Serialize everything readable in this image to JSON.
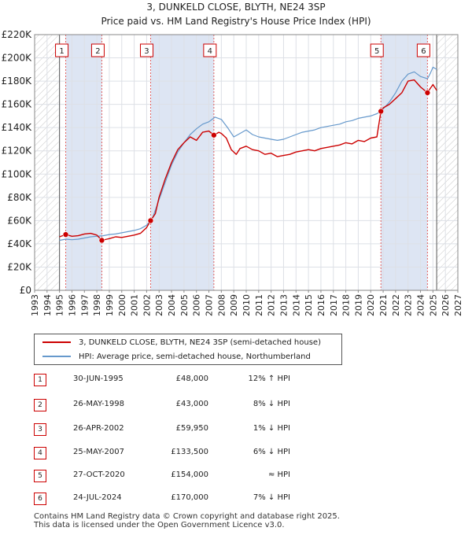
{
  "title_line1": "3, DUNKELD CLOSE, BLYTH, NE24 3SP",
  "title_line2": "Price paid vs. HM Land Registry's House Price Index (HPI)",
  "colors": {
    "property": "#cc0000",
    "hpi": "#6699cc",
    "shade": "#dde5f3",
    "hatch": "#bbbbbb"
  },
  "legend": {
    "property_label": "3, DUNKELD CLOSE, BLYTH, NE24 3SP (semi-detached house)",
    "hpi_label": "HPI: Average price, semi-detached house, Northumberland"
  },
  "sales": [
    {
      "num": "1",
      "date": "30-JUN-1995",
      "price": "£48,000",
      "hpi": "12% ↑ HPI"
    },
    {
      "num": "2",
      "date": "26-MAY-1998",
      "price": "£43,000",
      "hpi": "8% ↓ HPI"
    },
    {
      "num": "3",
      "date": "26-APR-2002",
      "price": "£59,950",
      "hpi": "1% ↓ HPI"
    },
    {
      "num": "4",
      "date": "25-MAY-2007",
      "price": "£133,500",
      "hpi": "6% ↓ HPI"
    },
    {
      "num": "5",
      "date": "27-OCT-2020",
      "price": "£154,000",
      "hpi": "≈ HPI"
    },
    {
      "num": "6",
      "date": "24-JUL-2024",
      "price": "£170,000",
      "hpi": "7% ↓ HPI"
    }
  ],
  "footer_line1": "Contains HM Land Registry data © Crown copyright and database right 2025.",
  "footer_line2": "This data is licensed under the Open Government Licence v3.0.",
  "chart_data": {
    "type": "line",
    "title": "3, DUNKELD CLOSE, BLYTH, NE24 3SP",
    "subtitle": "Price paid vs. HM Land Registry's House Price Index (HPI)",
    "xlim": [
      1993,
      2027
    ],
    "ylim": [
      0,
      220000
    ],
    "x_ticks": [
      1993,
      1994,
      1995,
      1996,
      1997,
      1998,
      1999,
      2000,
      2001,
      2002,
      2003,
      2004,
      2005,
      2006,
      2007,
      2008,
      2009,
      2010,
      2011,
      2012,
      2013,
      2014,
      2015,
      2016,
      2017,
      2018,
      2019,
      2020,
      2021,
      2022,
      2023,
      2024,
      2025,
      2026,
      2027
    ],
    "y_ticks": [
      0,
      20000,
      40000,
      60000,
      80000,
      100000,
      120000,
      140000,
      160000,
      180000,
      200000,
      220000
    ],
    "y_tick_labels": [
      "£0",
      "£20K",
      "£40K",
      "£60K",
      "£80K",
      "£100K",
      "£120K",
      "£140K",
      "£160K",
      "£180K",
      "£200K",
      "£220K"
    ],
    "grid": true,
    "data_range_x": [
      1995.0,
      2025.3
    ],
    "series": [
      {
        "name": "3, DUNKELD CLOSE, BLYTH, NE24 3SP (semi-detached house)",
        "color": "#cc0000",
        "x": [
          1995.0,
          1995.5,
          1996.0,
          1996.5,
          1997.0,
          1997.5,
          1998.0,
          1998.4,
          1998.8,
          1999.0,
          1999.5,
          2000.0,
          2000.5,
          2001.0,
          2001.5,
          2002.0,
          2002.33,
          2002.7,
          2003.0,
          2003.5,
          2004.0,
          2004.5,
          2005.0,
          2005.5,
          2006.0,
          2006.5,
          2007.0,
          2007.4,
          2007.8,
          2008.0,
          2008.4,
          2008.8,
          2009.0,
          2009.2,
          2009.5,
          2010.0,
          2010.5,
          2011.0,
          2011.5,
          2012.0,
          2012.5,
          2013.0,
          2013.5,
          2014.0,
          2014.5,
          2015.0,
          2015.5,
          2016.0,
          2016.5,
          2017.0,
          2017.5,
          2018.0,
          2018.5,
          2019.0,
          2019.5,
          2020.0,
          2020.5,
          2020.82,
          2021.0,
          2021.5,
          2022.0,
          2022.5,
          2023.0,
          2023.5,
          2024.0,
          2024.56,
          2024.8,
          2025.0,
          2025.3
        ],
        "values": [
          46000,
          48000,
          46500,
          47000,
          48500,
          49000,
          47500,
          43000,
          44000,
          44500,
          46000,
          45500,
          46500,
          47500,
          49000,
          54000,
          59950,
          66000,
          80000,
          96000,
          110000,
          121000,
          127000,
          132000,
          129000,
          136000,
          137000,
          133500,
          136000,
          135000,
          131000,
          121000,
          119000,
          117000,
          122000,
          124000,
          121000,
          120000,
          117000,
          118000,
          115000,
          116000,
          117000,
          119000,
          120000,
          121000,
          120000,
          122000,
          123000,
          124000,
          125000,
          127000,
          126000,
          129000,
          128000,
          131000,
          132000,
          154000,
          157000,
          160000,
          165000,
          170000,
          180000,
          181000,
          175000,
          170000,
          174000,
          177000,
          172000
        ]
      },
      {
        "name": "HPI: Average price, semi-detached house, Northumberland",
        "color": "#6699cc",
        "x": [
          1995.0,
          1995.5,
          1996.0,
          1996.5,
          1997.0,
          1997.5,
          1998.0,
          1998.5,
          1999.0,
          1999.5,
          2000.0,
          2000.5,
          2001.0,
          2001.5,
          2002.0,
          2002.5,
          2003.0,
          2003.5,
          2004.0,
          2004.5,
          2005.0,
          2005.5,
          2006.0,
          2006.5,
          2007.0,
          2007.5,
          2008.0,
          2008.5,
          2009.0,
          2009.5,
          2010.0,
          2010.5,
          2011.0,
          2011.5,
          2012.0,
          2012.5,
          2013.0,
          2013.5,
          2014.0,
          2014.5,
          2015.0,
          2015.5,
          2016.0,
          2016.5,
          2017.0,
          2017.5,
          2018.0,
          2018.5,
          2019.0,
          2019.5,
          2020.0,
          2020.5,
          2020.82,
          2021.0,
          2021.5,
          2022.0,
          2022.5,
          2023.0,
          2023.5,
          2024.0,
          2024.56,
          2024.8,
          2025.0,
          2025.3
        ],
        "values": [
          43000,
          44000,
          43500,
          44000,
          45000,
          46000,
          46500,
          47000,
          48000,
          48500,
          49500,
          50500,
          51500,
          53000,
          56000,
          63000,
          78000,
          93000,
          108000,
          119000,
          127000,
          134000,
          139000,
          143000,
          145000,
          149000,
          147000,
          140000,
          132000,
          135000,
          138000,
          134000,
          132000,
          131000,
          130000,
          129000,
          130000,
          132000,
          134000,
          136000,
          137000,
          138000,
          140000,
          141000,
          142000,
          143000,
          145000,
          146000,
          148000,
          149000,
          150000,
          152000,
          154000,
          156000,
          162000,
          170000,
          180000,
          186000,
          188000,
          184000,
          182000,
          187000,
          192000,
          190000
        ]
      }
    ],
    "sale_markers": [
      {
        "label": "1",
        "x": 1995.5,
        "y": 48000
      },
      {
        "label": "2",
        "x": 1998.4,
        "y": 43000
      },
      {
        "label": "3",
        "x": 2002.32,
        "y": 59950
      },
      {
        "label": "4",
        "x": 2007.4,
        "y": 133500
      },
      {
        "label": "5",
        "x": 2020.82,
        "y": 154000
      },
      {
        "label": "6",
        "x": 2024.56,
        "y": 170000
      }
    ]
  }
}
